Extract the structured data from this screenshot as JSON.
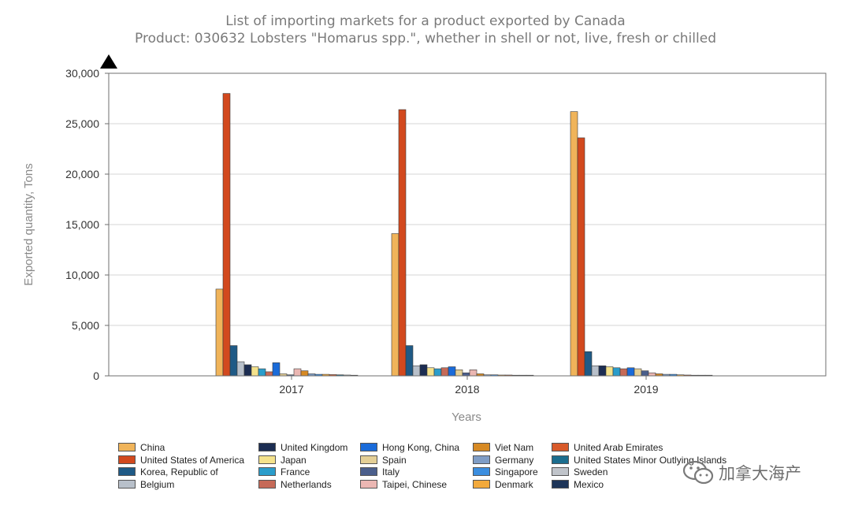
{
  "chart_data": {
    "type": "bar",
    "title": "List of importing markets for a product exported by Canada",
    "subtitle": "Product: 030632 Lobsters \"Homarus spp.\", whether in shell or not, live, fresh or chilled",
    "xlabel": "Years",
    "ylabel": "Exported quantity, Tons",
    "ylim": [
      0,
      30000
    ],
    "yticks": [
      0,
      5000,
      10000,
      15000,
      20000,
      25000,
      30000
    ],
    "ytick_labels": [
      "0",
      "5,000",
      "10,000",
      "15,000",
      "20,000",
      "25,000",
      "30,000"
    ],
    "categories": [
      "2017",
      "2018",
      "2019"
    ],
    "grid": true,
    "legend_position": "bottom",
    "series": [
      {
        "name": "China",
        "color": "#F0B45A",
        "values": [
          8600,
          14100,
          26200
        ]
      },
      {
        "name": "United States of America",
        "color": "#D2491E",
        "values": [
          28000,
          26400,
          23600
        ]
      },
      {
        "name": "Korea, Republic of",
        "color": "#1F5A86",
        "values": [
          3000,
          3000,
          2400
        ]
      },
      {
        "name": "Belgium",
        "color": "#B8C0CA",
        "values": [
          1400,
          1000,
          1000
        ]
      },
      {
        "name": "United Kingdom",
        "color": "#1C2D52",
        "values": [
          1100,
          1100,
          1000
        ]
      },
      {
        "name": "Japan",
        "color": "#F4E28C",
        "values": [
          900,
          800,
          900
        ]
      },
      {
        "name": "France",
        "color": "#2A9DCB",
        "values": [
          700,
          700,
          800
        ]
      },
      {
        "name": "Netherlands",
        "color": "#C66A58",
        "values": [
          400,
          800,
          700
        ]
      },
      {
        "name": "Hong Kong, China",
        "color": "#1A6BD9",
        "values": [
          1300,
          900,
          800
        ]
      },
      {
        "name": "Spain",
        "color": "#E4CF96",
        "values": [
          200,
          600,
          700
        ]
      },
      {
        "name": "Italy",
        "color": "#4B5F8C",
        "values": [
          100,
          300,
          500
        ]
      },
      {
        "name": "Taipei, Chinese",
        "color": "#EBB7B3",
        "values": [
          700,
          600,
          300
        ]
      },
      {
        "name": "Viet Nam",
        "color": "#D78A24",
        "values": [
          500,
          200,
          200
        ]
      },
      {
        "name": "Germany",
        "color": "#7F9DC6",
        "values": [
          200,
          100,
          150
        ]
      },
      {
        "name": "Singapore",
        "color": "#3B8EE0",
        "values": [
          150,
          100,
          150
        ]
      },
      {
        "name": "Denmark",
        "color": "#F2A93B",
        "values": [
          150,
          80,
          100
        ]
      },
      {
        "name": "United Arab Emirates",
        "color": "#D85A2A",
        "values": [
          120,
          80,
          80
        ]
      },
      {
        "name": "United States Minor Outlying Islands",
        "color": "#1B6D8E",
        "values": [
          100,
          60,
          60
        ]
      },
      {
        "name": "Sweden",
        "color": "#C0C4CA",
        "values": [
          80,
          60,
          60
        ]
      },
      {
        "name": "Mexico",
        "color": "#1E3558",
        "values": [
          60,
          50,
          60
        ]
      }
    ]
  },
  "watermark": {
    "icon": "wechat-icon",
    "text": "加拿大海产"
  }
}
